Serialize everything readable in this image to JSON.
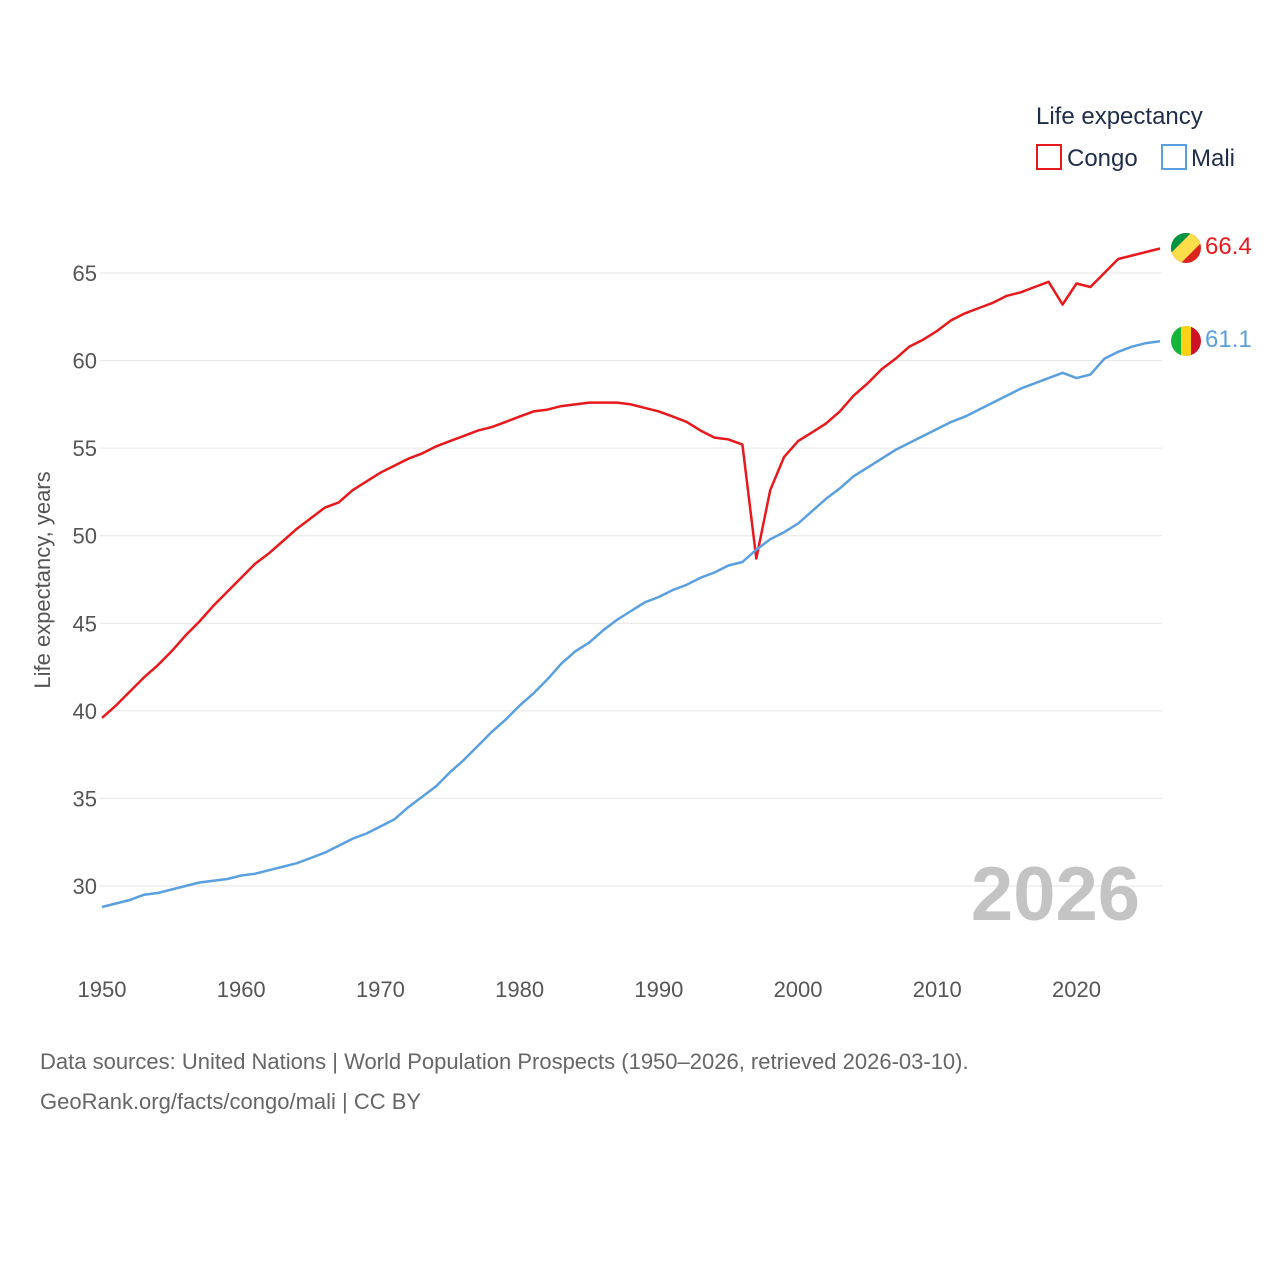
{
  "chart_data": {
    "type": "line",
    "legend_title": "Life expectancy",
    "ylabel": "Life expectancy, years",
    "xlabel": "",
    "xlim": [
      1950,
      2026
    ],
    "ylim": [
      27,
      68
    ],
    "x_ticks": [
      1950,
      1960,
      1970,
      1980,
      1990,
      2000,
      2010,
      2020
    ],
    "y_ticks": [
      30,
      35,
      40,
      45,
      50,
      55,
      60,
      65
    ],
    "grid": true,
    "legend_position": "top-right",
    "watermark_year": "2026",
    "x": [
      1950,
      1951,
      1952,
      1953,
      1954,
      1955,
      1956,
      1957,
      1958,
      1959,
      1960,
      1961,
      1962,
      1963,
      1964,
      1965,
      1966,
      1967,
      1968,
      1969,
      1970,
      1971,
      1972,
      1973,
      1974,
      1975,
      1976,
      1977,
      1978,
      1979,
      1980,
      1981,
      1982,
      1983,
      1984,
      1985,
      1986,
      1987,
      1988,
      1989,
      1990,
      1991,
      1992,
      1993,
      1994,
      1995,
      1996,
      1997,
      1998,
      1999,
      2000,
      2001,
      2002,
      2003,
      2004,
      2005,
      2006,
      2007,
      2008,
      2009,
      2010,
      2011,
      2012,
      2013,
      2014,
      2015,
      2016,
      2017,
      2018,
      2019,
      2020,
      2021,
      2022,
      2023,
      2024,
      2025,
      2026
    ],
    "series": [
      {
        "name": "Congo",
        "color": "#e8191d",
        "end_value": "66.4",
        "values": [
          39.6,
          40.3,
          41.1,
          41.9,
          42.6,
          43.4,
          44.3,
          45.1,
          46.0,
          46.8,
          47.6,
          48.4,
          49.0,
          49.7,
          50.4,
          51.0,
          51.6,
          51.9,
          52.6,
          53.1,
          53.6,
          54.0,
          54.4,
          54.7,
          55.1,
          55.4,
          55.7,
          56.0,
          56.2,
          56.5,
          56.8,
          57.1,
          57.2,
          57.4,
          57.5,
          57.6,
          57.6,
          57.6,
          57.5,
          57.3,
          57.1,
          56.8,
          56.5,
          56.0,
          55.6,
          55.5,
          55.2,
          48.7,
          52.6,
          54.5,
          55.4,
          55.9,
          56.4,
          57.1,
          58.0,
          58.7,
          59.5,
          60.1,
          60.8,
          61.2,
          61.7,
          62.3,
          62.7,
          63.0,
          63.3,
          63.7,
          63.9,
          64.2,
          64.5,
          63.2,
          64.4,
          64.2,
          65.0,
          65.8,
          66.0,
          66.2,
          66.4
        ]
      },
      {
        "name": "Mali",
        "color": "#5aa0e0",
        "end_value": "61.1",
        "values": [
          28.8,
          29.0,
          29.2,
          29.5,
          29.6,
          29.8,
          30.0,
          30.2,
          30.3,
          30.4,
          30.6,
          30.7,
          30.9,
          31.1,
          31.3,
          31.6,
          31.9,
          32.3,
          32.7,
          33.0,
          33.4,
          33.8,
          34.5,
          35.1,
          35.7,
          36.5,
          37.2,
          38.0,
          38.8,
          39.5,
          40.3,
          41.0,
          41.8,
          42.7,
          43.4,
          43.9,
          44.6,
          45.2,
          45.7,
          46.2,
          46.5,
          46.9,
          47.2,
          47.6,
          47.9,
          48.3,
          48.5,
          49.2,
          49.8,
          50.2,
          50.7,
          51.4,
          52.1,
          52.7,
          53.4,
          53.9,
          54.4,
          54.9,
          55.3,
          55.7,
          56.1,
          56.5,
          56.8,
          57.2,
          57.6,
          58.0,
          58.4,
          58.7,
          59.0,
          59.3,
          59.0,
          59.2,
          60.1,
          60.5,
          60.8,
          61.0,
          61.1
        ]
      }
    ]
  },
  "footer": {
    "line1": "Data sources: United Nations | World Population Prospects (1950–2026, retrieved 2026-03-10).",
    "line2": "GeoRank.org/facts/congo/mali | CC BY"
  }
}
